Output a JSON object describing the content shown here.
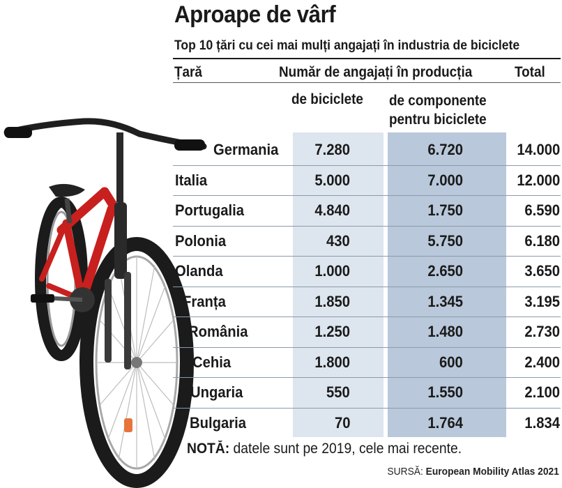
{
  "title": "Aproape de vârf",
  "subtitle": "Top 10 țări cu cei mai mulți angajați în industria de biciclete",
  "headers": {
    "country": "Țară",
    "group": "Număr de angajați în producția",
    "total": "Total",
    "bikes": "de biciclete",
    "components_line1": "de componente",
    "components_line2": "pentru biciclete"
  },
  "rows": [
    {
      "country": "Germania",
      "bikes": "7.280",
      "components": "6.720",
      "total": "14.000"
    },
    {
      "country": "Italia",
      "bikes": "5.000",
      "components": "7.000",
      "total": "12.000"
    },
    {
      "country": "Portugalia",
      "bikes": "4.840",
      "components": "1.750",
      "total": "6.590"
    },
    {
      "country": "Polonia",
      "bikes": "430",
      "components": "5.750",
      "total": "6.180"
    },
    {
      "country": "Olanda",
      "bikes": "1.000",
      "components": "2.650",
      "total": "3.650"
    },
    {
      "country": "Franța",
      "bikes": "1.850",
      "components": "1.345",
      "total": "3.195"
    },
    {
      "country": "România",
      "bikes": "1.250",
      "components": "1.480",
      "total": "2.730"
    },
    {
      "country": "Cehia",
      "bikes": "1.800",
      "components": "600",
      "total": "2.400"
    },
    {
      "country": "Ungaria",
      "bikes": "550",
      "components": "1.550",
      "total": "2.100"
    },
    {
      "country": "Bulgaria",
      "bikes": "70",
      "components": "1.764",
      "total": "1.834"
    }
  ],
  "note": {
    "label": "NOTĂ:",
    "text": " datele sunt pe 2019, cele mai recente."
  },
  "source": {
    "label": "SURSĂ: ",
    "text": "European Mobility Atlas 2021"
  },
  "colors": {
    "band_bikes": "#dde5ee",
    "band_components": "#b9c8da",
    "bike_frame": "#c8201e"
  },
  "illustration": "red-bicycle"
}
